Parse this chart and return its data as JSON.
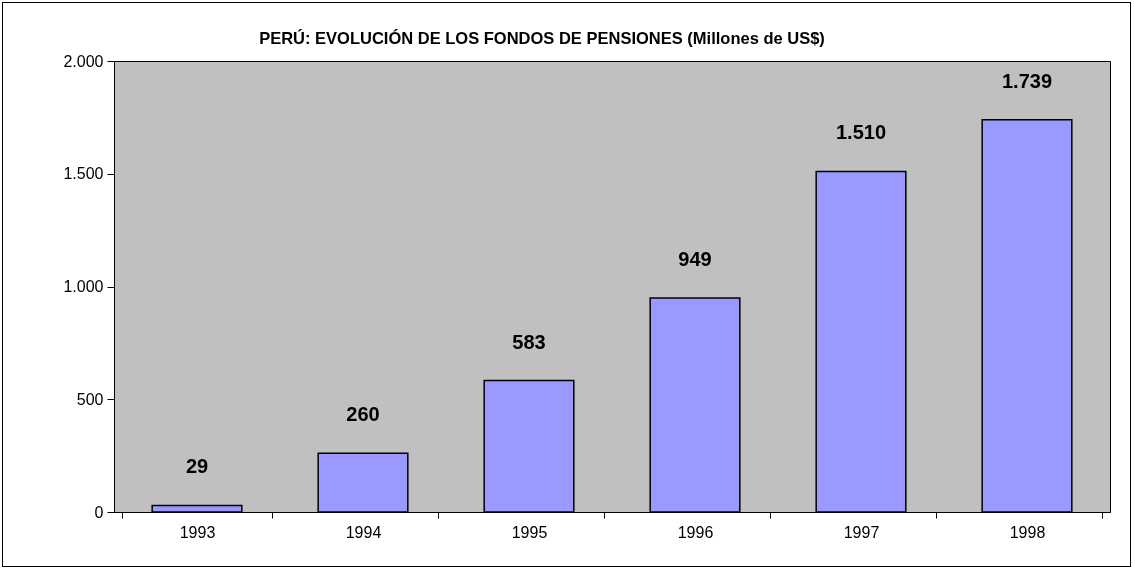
{
  "chart_data": {
    "type": "bar",
    "title": "PERÚ: EVOLUCIÓN DE LOS FONDOS DE PENSIONES (Millones de US$)",
    "categories": [
      "1993",
      "1994",
      "1995",
      "1996",
      "1997",
      "1998"
    ],
    "values": [
      29,
      260,
      583,
      949,
      1510,
      1739
    ],
    "value_labels": [
      "29",
      "260",
      "583",
      "949",
      "1.510",
      "1.739"
    ],
    "color": "#9999ff",
    "ylim": [
      0,
      2000
    ],
    "yticks": [
      0,
      {
        "value": 500,
        "label": "500"
      },
      {
        "value": 1000,
        "label": "1.000"
      },
      {
        "value": 1500,
        "label": "1.500"
      },
      {
        "value": 2000,
        "label": "2.000"
      }
    ],
    "grid": false
  }
}
